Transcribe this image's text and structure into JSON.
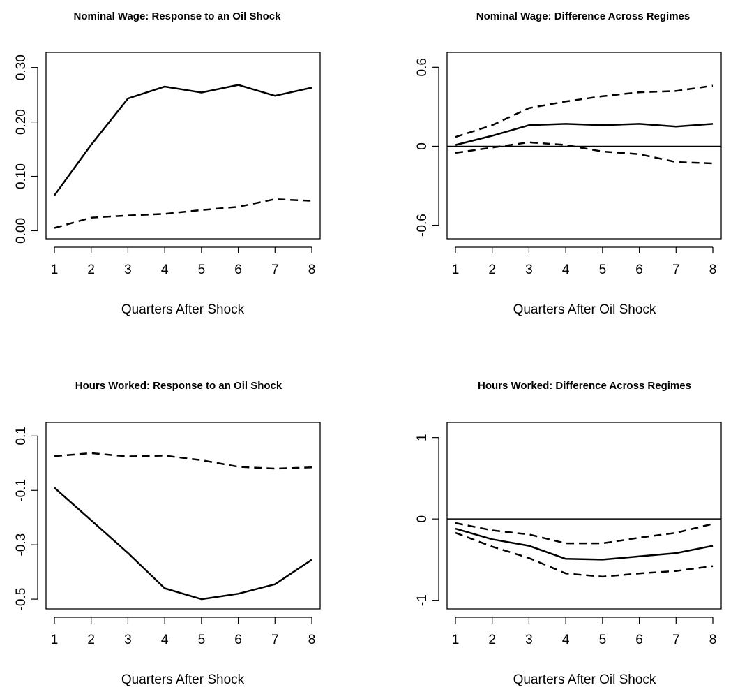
{
  "chart_data": [
    {
      "type": "line",
      "title": "Nominal Wage: Response to an Oil Shock",
      "xlabel": "Quarters After Shock",
      "ylabel": "",
      "x": [
        1,
        2,
        3,
        4,
        5,
        6,
        7,
        8
      ],
      "xticks": [
        "1",
        "2",
        "3",
        "4",
        "5",
        "6",
        "7",
        "8"
      ],
      "xlim": [
        1,
        8
      ],
      "ylim": [
        -0.002,
        0.315
      ],
      "yticks": [
        0.0,
        0.1,
        0.2,
        0.3
      ],
      "ytick_labels": [
        "0.00",
        "0.10",
        "0.20",
        "0.30"
      ],
      "reference_line": null,
      "series": [
        {
          "style": "solid",
          "values": [
            0.065,
            0.158,
            0.243,
            0.265,
            0.254,
            0.268,
            0.248,
            0.263
          ]
        },
        {
          "style": "dashed",
          "values": [
            0.005,
            0.024,
            0.028,
            0.031,
            0.038,
            0.044,
            0.058,
            0.055
          ]
        }
      ]
    },
    {
      "type": "line",
      "title": "Nominal Wage: Difference Across Regimes",
      "xlabel": "Quarters After Oil Shock",
      "ylabel": "",
      "x": [
        1,
        2,
        3,
        4,
        5,
        6,
        7,
        8
      ],
      "xticks": [
        "1",
        "2",
        "3",
        "4",
        "5",
        "6",
        "7",
        "8"
      ],
      "xlim": [
        1,
        8
      ],
      "ylim": [
        -0.65,
        0.66
      ],
      "yticks": [
        -0.6,
        0,
        0.6
      ],
      "ytick_labels": [
        "-0.6",
        "0",
        "0.6"
      ],
      "reference_line": 0,
      "series": [
        {
          "style": "solid",
          "values": [
            0.01,
            0.08,
            0.16,
            0.17,
            0.16,
            0.17,
            0.15,
            0.17
          ]
        },
        {
          "style": "dashed",
          "values": [
            0.07,
            0.16,
            0.29,
            0.34,
            0.38,
            0.41,
            0.42,
            0.46
          ]
        },
        {
          "style": "dashed",
          "values": [
            -0.05,
            -0.01,
            0.03,
            0.01,
            -0.04,
            -0.06,
            -0.12,
            -0.13
          ]
        }
      ]
    },
    {
      "type": "line",
      "title": "Hours Worked: Response to an Oil Shock",
      "xlabel": "Quarters After Shock",
      "ylabel": "",
      "x": [
        1,
        2,
        3,
        4,
        5,
        6,
        7,
        8
      ],
      "xticks": [
        "1",
        "2",
        "3",
        "4",
        "5",
        "6",
        "7",
        "8"
      ],
      "xlim": [
        1,
        8
      ],
      "ylim": [
        -0.51,
        0.124
      ],
      "yticks": [
        -0.5,
        -0.3,
        -0.1,
        0.1
      ],
      "ytick_labels": [
        "-0.5",
        "-0.3",
        "-0.1",
        "0.1"
      ],
      "reference_line": null,
      "series": [
        {
          "style": "solid",
          "values": [
            -0.09,
            -0.21,
            -0.33,
            -0.46,
            -0.5,
            -0.48,
            -0.445,
            -0.355
          ]
        },
        {
          "style": "dashed",
          "values": [
            0.026,
            0.037,
            0.025,
            0.028,
            0.011,
            -0.013,
            -0.02,
            -0.015
          ]
        }
      ]
    },
    {
      "type": "line",
      "title": "Hours Worked: Difference Across Regimes",
      "xlabel": "Quarters After Oil Shock",
      "ylabel": "",
      "x": [
        1,
        2,
        3,
        4,
        5,
        6,
        7,
        8
      ],
      "xticks": [
        "1",
        "2",
        "3",
        "4",
        "5",
        "6",
        "7",
        "8"
      ],
      "xlim": [
        1,
        8
      ],
      "ylim": [
        -1.02,
        1.1
      ],
      "yticks": [
        -1,
        0,
        1
      ],
      "ytick_labels": [
        "-1",
        "0",
        "1"
      ],
      "reference_line": 0,
      "series": [
        {
          "style": "solid",
          "values": [
            -0.12,
            -0.25,
            -0.33,
            -0.49,
            -0.5,
            -0.46,
            -0.42,
            -0.33
          ]
        },
        {
          "style": "dashed",
          "values": [
            -0.05,
            -0.14,
            -0.19,
            -0.3,
            -0.3,
            -0.23,
            -0.17,
            -0.06
          ]
        },
        {
          "style": "dashed",
          "values": [
            -0.17,
            -0.34,
            -0.48,
            -0.67,
            -0.71,
            -0.67,
            -0.64,
            -0.58
          ]
        }
      ]
    }
  ]
}
